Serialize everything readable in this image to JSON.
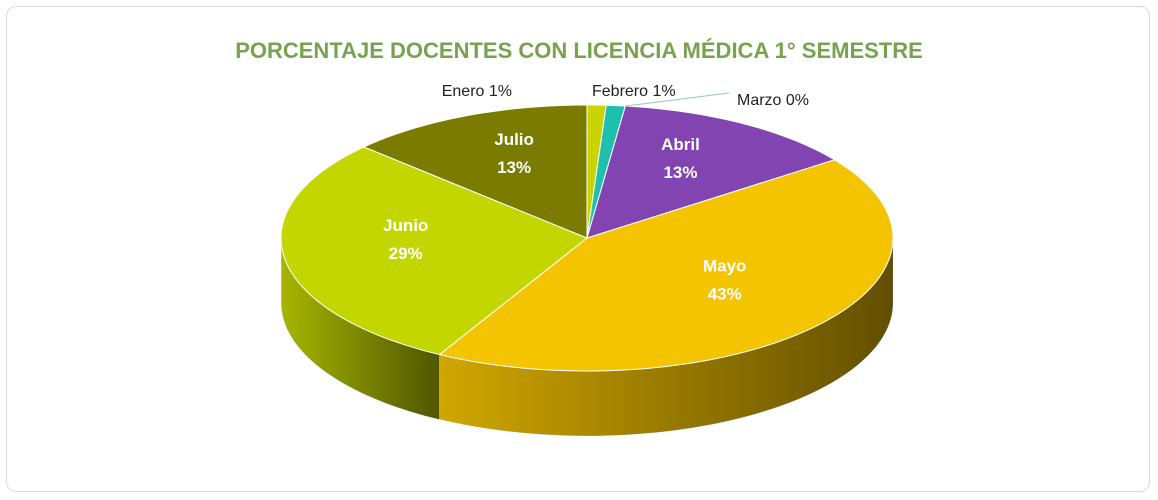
{
  "chart_data": {
    "type": "pie",
    "title": "PORCENTAJE DOCENTES CON LICENCIA MÉDICA 1° SEMESTRE",
    "categories": [
      "Enero",
      "Febrero",
      "Marzo",
      "Abril",
      "Mayo",
      "Junio",
      "Julio"
    ],
    "values": [
      1,
      1,
      0,
      13,
      43,
      29,
      13
    ],
    "value_labels": [
      "1%",
      "1%",
      "0%",
      "13%",
      "43%",
      "29%",
      "13%"
    ],
    "colors": [
      "#c9d400",
      "#1fbfb0",
      "#9fd4c8",
      "#8244b0",
      "#f5c400",
      "#c4d600",
      "#7b7b00"
    ]
  }
}
